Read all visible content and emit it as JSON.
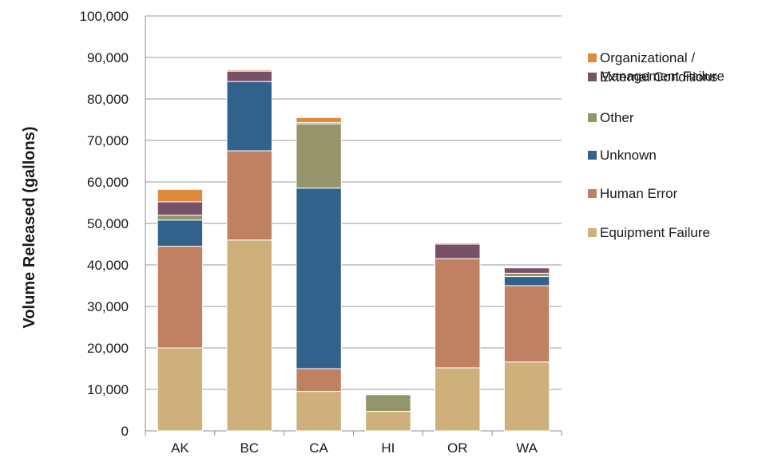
{
  "chart_data": {
    "type": "bar",
    "stacked": true,
    "ylabel": "Volume Released (gallons)",
    "xlabel": "",
    "ylim": [
      0,
      100000
    ],
    "yticks": [
      "0",
      "10,000",
      "20,000",
      "30,000",
      "40,000",
      "50,000",
      "60,000",
      "70,000",
      "80,000",
      "90,000",
      "100,000"
    ],
    "grid": true,
    "legend_position": "right",
    "categories": [
      "AK",
      "BC",
      "CA",
      "HI",
      "OR",
      "WA"
    ],
    "series": [
      {
        "name": "Equipment Failure",
        "color": "#cdb07a",
        "values": [
          20000,
          46000,
          9500,
          4700,
          15200,
          16600
        ]
      },
      {
        "name": "Human Error",
        "color": "#c08163",
        "values": [
          24500,
          21500,
          5500,
          0,
          26300,
          18400
        ]
      },
      {
        "name": "Unknown",
        "color": "#31628c",
        "values": [
          6300,
          16700,
          43500,
          0,
          0,
          2200
        ]
      },
      {
        "name": "Other",
        "color": "#95956b",
        "values": [
          1200,
          0,
          15500,
          4000,
          0,
          800
        ]
      },
      {
        "name": "External Conditions",
        "color": "#785068",
        "values": [
          3200,
          2500,
          300,
          0,
          3500,
          1300
        ]
      },
      {
        "name": "Organizational / Management Failure",
        "color": "#e08a3c",
        "values": [
          3000,
          300,
          1200,
          0,
          300,
          100
        ]
      }
    ],
    "legend_order": [
      {
        "lines": [
          "Organizational /",
          "Management Failure"
        ],
        "series": 5
      },
      {
        "lines": [
          "External Conditions"
        ],
        "series": 4
      },
      {
        "lines": [
          "Other"
        ],
        "series": 3
      },
      {
        "lines": [
          "Unknown"
        ],
        "series": 2
      },
      {
        "lines": [
          "Human Error"
        ],
        "series": 1
      },
      {
        "lines": [
          "Equipment Failure"
        ],
        "series": 0
      }
    ]
  }
}
